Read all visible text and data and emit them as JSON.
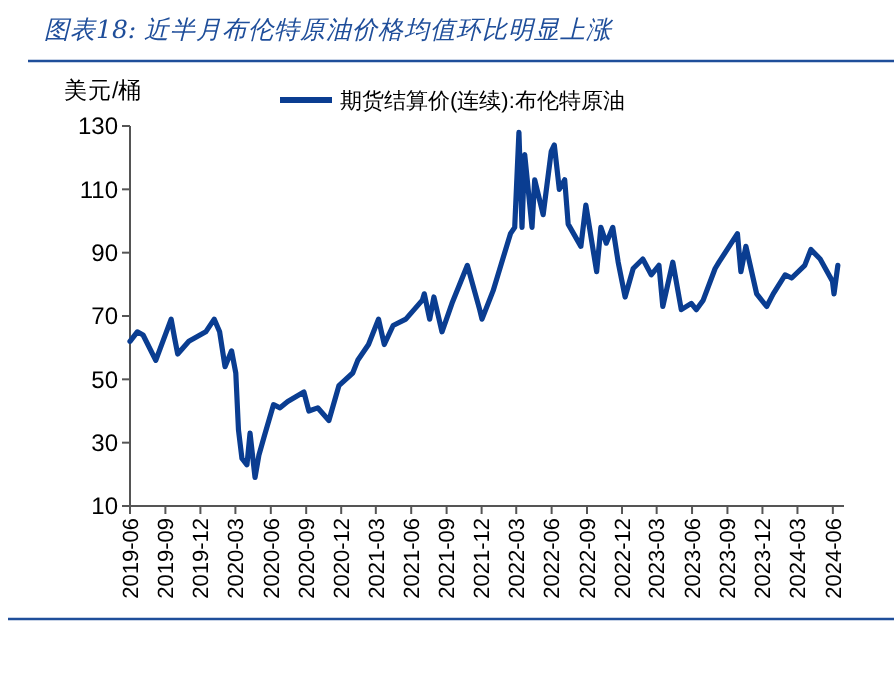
{
  "chart_data": {
    "type": "line",
    "title": "图表18:  近半月布伦特原油价格均值环比明显上涨",
    "ylabel": "美元/桶",
    "legend": "top",
    "line_style": "solid",
    "marker": "none",
    "grid": false,
    "ylim": [
      10,
      130
    ],
    "yticks": [
      10,
      30,
      50,
      70,
      90,
      110,
      130
    ],
    "xlim": [
      "2019-06-01",
      "2024-06-30"
    ],
    "xticks": [
      "2019-06",
      "2019-09",
      "2019-12",
      "2020-03",
      "2020-06",
      "2020-09",
      "2020-12",
      "2021-03",
      "2021-06",
      "2021-09",
      "2021-12",
      "2022-03",
      "2022-06",
      "2022-09",
      "2022-12",
      "2023-03",
      "2023-06",
      "2023-09",
      "2023-12",
      "2024-03",
      "2024-06"
    ],
    "x": [
      "2019-06-01",
      "2019-06-20",
      "2019-07-05",
      "2019-08-07",
      "2019-09-16",
      "2019-09-25",
      "2019-10-03",
      "2019-11-01",
      "2019-12-15",
      "2020-01-06",
      "2020-01-20",
      "2020-02-03",
      "2020-02-20",
      "2020-03-02",
      "2020-03-09",
      "2020-03-18",
      "2020-03-31",
      "2020-04-08",
      "2020-04-21",
      "2020-05-01",
      "2020-05-15",
      "2020-06-08",
      "2020-06-25",
      "2020-07-15",
      "2020-08-26",
      "2020-09-08",
      "2020-10-01",
      "2020-10-30",
      "2020-11-25",
      "2020-12-31",
      "2021-01-13",
      "2021-02-10",
      "2021-03-08",
      "2021-03-23",
      "2021-04-15",
      "2021-05-18",
      "2021-06-30",
      "2021-07-05",
      "2021-07-19",
      "2021-07-30",
      "2021-08-20",
      "2021-09-15",
      "2021-10-25",
      "2021-11-26",
      "2021-12-02",
      "2021-12-31",
      "2022-01-25",
      "2022-02-14",
      "2022-02-25",
      "2022-03-08",
      "2022-03-16",
      "2022-03-23",
      "2022-04-11",
      "2022-04-18",
      "2022-05-10",
      "2022-05-31",
      "2022-06-08",
      "2022-06-21",
      "2022-07-05",
      "2022-07-14",
      "2022-08-16",
      "2022-08-29",
      "2022-09-26",
      "2022-10-07",
      "2022-10-21",
      "2022-11-07",
      "2022-11-21",
      "2022-12-09",
      "2022-12-30",
      "2023-01-24",
      "2023-02-15",
      "2023-03-07",
      "2023-03-17",
      "2023-04-12",
      "2023-05-04",
      "2023-05-30",
      "2023-06-12",
      "2023-06-30",
      "2023-07-31",
      "2023-08-10",
      "2023-09-27",
      "2023-10-06",
      "2023-10-19",
      "2023-11-16",
      "2023-12-12",
      "2023-12-29",
      "2024-01-29",
      "2024-02-15",
      "2024-03-20",
      "2024-04-05",
      "2024-04-29",
      "2024-05-31",
      "2024-06-04",
      "2024-06-14"
    ],
    "series": [
      {
        "name": "期货结算价(连续):布伦特原油",
        "color": "#0a3d91",
        "values": [
          62,
          65,
          64,
          56,
          69,
          63,
          58,
          62,
          65,
          69,
          65,
          54,
          59,
          52,
          34,
          25,
          23,
          33,
          19,
          26,
          32,
          42,
          41,
          43,
          46,
          40,
          41,
          37,
          48,
          52,
          56,
          61,
          69,
          61,
          67,
          69,
          75,
          77,
          69,
          76,
          65,
          74,
          86,
          72,
          69,
          78,
          88,
          96,
          98,
          128,
          98,
          121,
          98,
          113,
          102,
          122,
          124,
          110,
          113,
          99,
          92,
          105,
          84,
          98,
          93,
          98,
          87,
          76,
          85,
          88,
          83,
          86,
          73,
          87,
          72,
          74,
          72,
          75,
          85,
          87,
          96,
          84,
          92,
          77,
          73,
          77,
          83,
          82,
          86,
          91,
          88,
          81,
          77,
          86
        ]
      }
    ]
  }
}
